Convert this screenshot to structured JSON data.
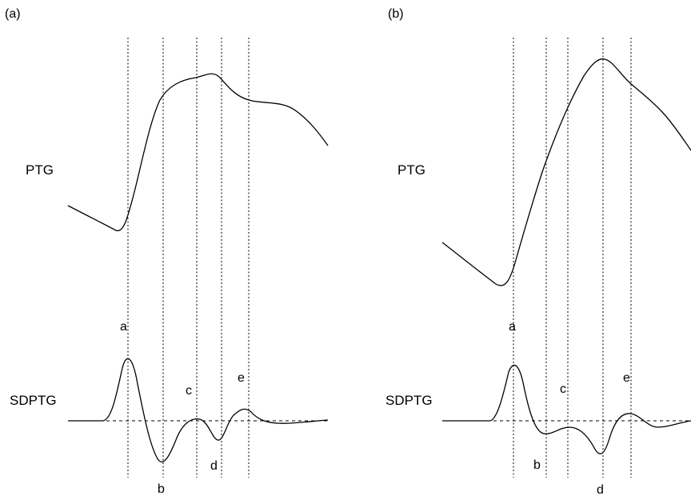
{
  "panels": [
    {
      "label": "(a)",
      "ptg_label": "PTG",
      "sdptg_label": "SDPTG",
      "points": [
        "a",
        "b",
        "c",
        "d",
        "e"
      ]
    },
    {
      "label": "(b)",
      "ptg_label": "PTG",
      "sdptg_label": "SDPTG",
      "points": [
        "a",
        "b",
        "c",
        "d",
        "e"
      ]
    }
  ]
}
